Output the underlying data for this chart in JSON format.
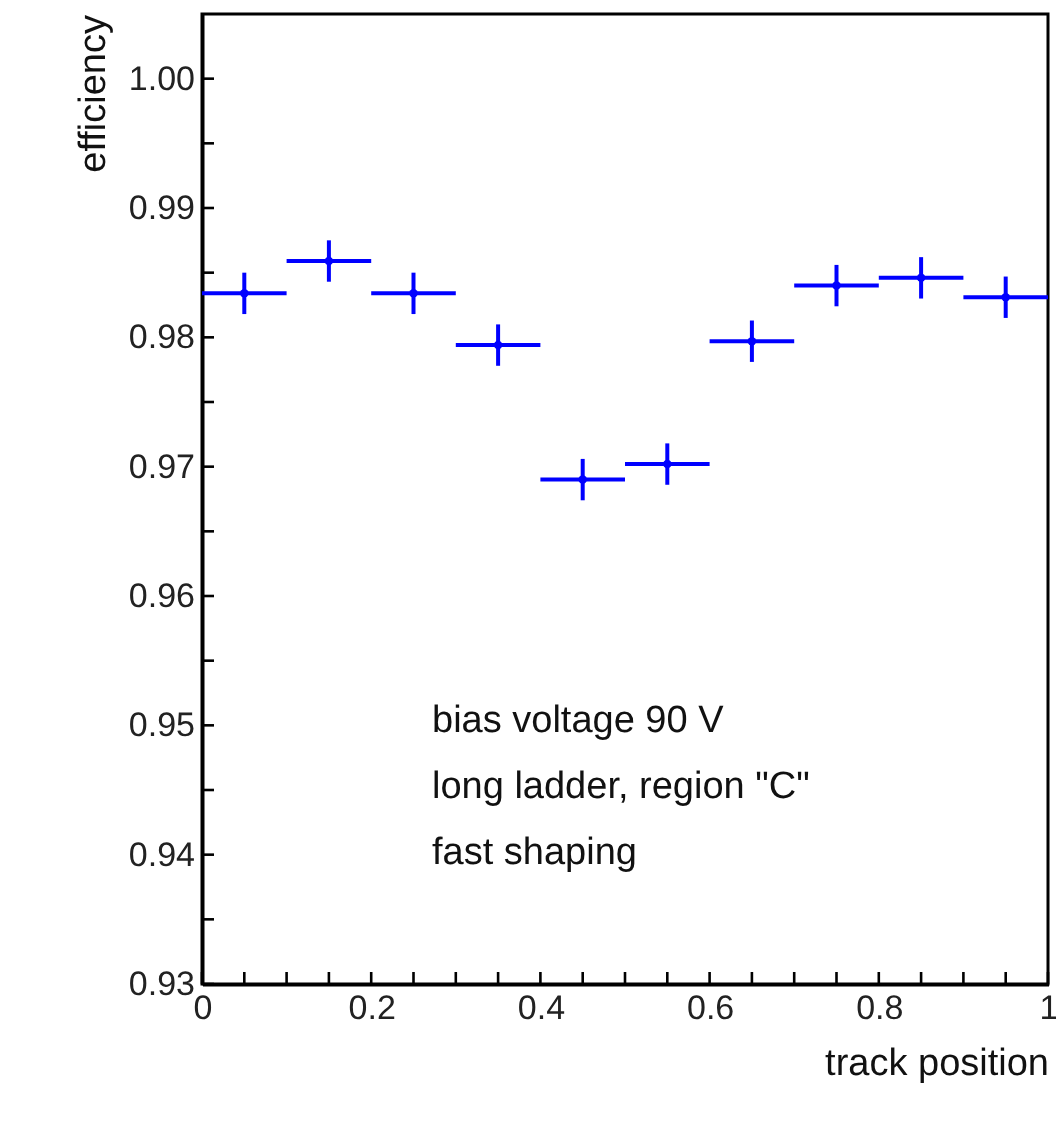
{
  "chart_data": {
    "type": "scatter",
    "xlabel": "track position",
    "ylabel": "efficiency",
    "x": [
      0.05,
      0.15,
      0.25,
      0.35,
      0.45,
      0.55,
      0.65,
      0.75,
      0.85,
      0.95
    ],
    "series": [
      {
        "color": "#0000ff",
        "values": [
          0.9834,
          0.9859,
          0.9834,
          0.9794,
          0.969,
          0.9702,
          0.9797,
          0.984,
          0.9846,
          0.9831
        ],
        "errors": [
          0.0016,
          0.0016,
          0.0016,
          0.0016,
          0.0016,
          0.0016,
          0.0016,
          0.0016,
          0.0016,
          0.0016
        ],
        "xerrors": [
          0.05,
          0.05,
          0.05,
          0.05,
          0.05,
          0.05,
          0.05,
          0.05,
          0.05,
          0.05
        ]
      }
    ],
    "marker": "circle",
    "grid": false,
    "xlim": [
      0,
      1
    ],
    "ylim": [
      0.93,
      1.005
    ],
    "xticks": [
      0,
      {
        "value": 0.05,
        "label": null
      },
      0.2,
      {
        "value": 0.1,
        "label": null
      },
      {
        "value": 0.15,
        "label": null
      },
      {
        "value": 0.25,
        "label": null
      },
      {
        "value": 0.3,
        "label": null
      },
      {
        "value": 0.35,
        "label": null
      },
      0.4,
      {
        "value": 0.45,
        "label": null
      },
      {
        "value": 0.5,
        "label": null
      },
      {
        "value": 0.55,
        "label": null
      },
      0.6,
      {
        "value": 0.65,
        "label": null
      },
      {
        "value": 0.7,
        "label": null
      },
      {
        "value": 0.75,
        "label": null
      },
      0.8,
      {
        "value": 0.85,
        "label": null
      },
      {
        "value": 0.9,
        "label": null
      },
      {
        "value": 0.95,
        "label": null
      },
      1
    ],
    "yticks": [
      0.93,
      {
        "value": 0.935,
        "label": null
      },
      0.94,
      {
        "value": 0.945,
        "label": null
      },
      0.95,
      {
        "value": 0.955,
        "label": null
      },
      0.96,
      {
        "value": 0.965,
        "label": null
      },
      0.97,
      {
        "value": 0.975,
        "label": null
      },
      0.98,
      {
        "value": 0.985,
        "label": null
      },
      0.99,
      {
        "value": 0.995,
        "label": null
      },
      {
        "value": 1,
        "label": "1.00"
      }
    ],
    "annotations": [
      "bias voltage 90 V",
      "long ladder, region \"C\"",
      "fast shaping"
    ]
  }
}
